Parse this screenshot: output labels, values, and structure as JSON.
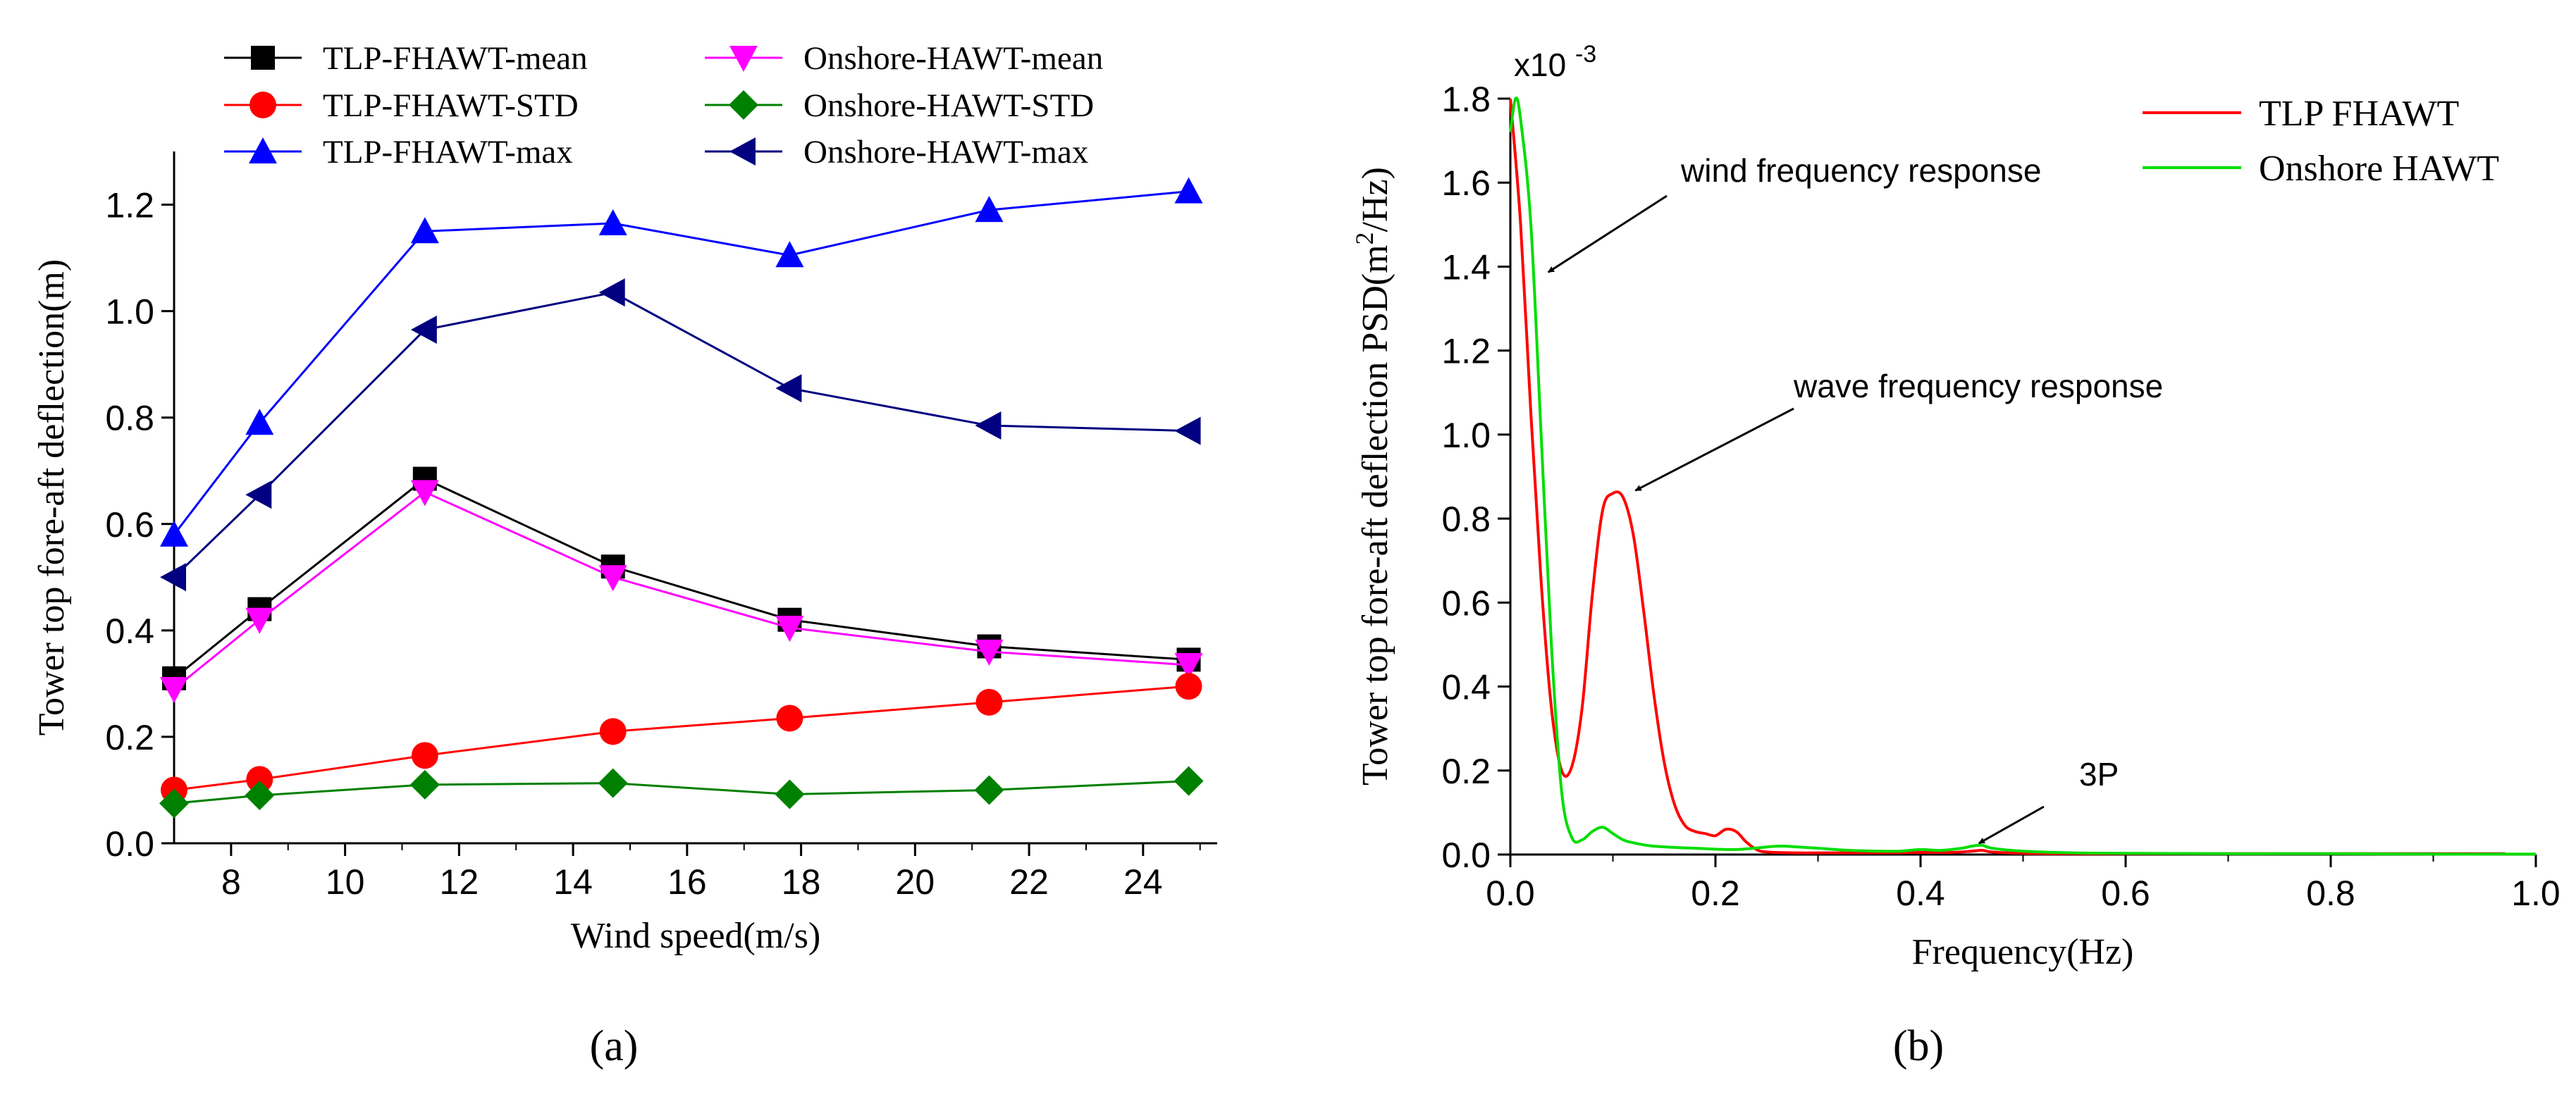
{
  "chart_data": [
    {
      "panel_label": "(a)",
      "type": "line",
      "xlabel": "Wind speed(m/s)",
      "ylabel": "Tower top fore-aft deflection(m)",
      "xlim": [
        7,
        25.3
      ],
      "ylim": [
        0,
        1.3
      ],
      "xticks": [
        8,
        10,
        12,
        14,
        16,
        18,
        20,
        22,
        24
      ],
      "yticks": [
        0.0,
        0.2,
        0.4,
        0.6,
        0.8,
        1.0,
        1.2
      ],
      "grid": false,
      "legend_position": "top-left, above plot, two columns",
      "x": [
        7.0,
        8.5,
        11.4,
        14.7,
        17.8,
        21.3,
        24.8
      ],
      "series": [
        {
          "name": "TLP-FHAWT-mean",
          "color": "#000000",
          "marker": "square",
          "values": [
            0.31,
            0.44,
            0.685,
            0.52,
            0.42,
            0.37,
            0.345
          ]
        },
        {
          "name": "Onshore-HAWT-mean",
          "color": "#ff00ff",
          "marker": "triangle-down",
          "values": [
            0.29,
            0.42,
            0.66,
            0.5,
            0.405,
            0.36,
            0.335
          ]
        },
        {
          "name": "TLP-FHAWT-STD",
          "color": "#ff0000",
          "marker": "circle",
          "values": [
            0.1,
            0.12,
            0.165,
            0.21,
            0.235,
            0.265,
            0.295
          ]
        },
        {
          "name": "Onshore-HAWT-STD",
          "color": "#008000",
          "marker": "diamond",
          "values": [
            0.075,
            0.09,
            0.11,
            0.113,
            0.092,
            0.1,
            0.117
          ]
        },
        {
          "name": "TLP-FHAWT-max",
          "color": "#0000ff",
          "marker": "triangle-up",
          "values": [
            0.58,
            0.79,
            1.15,
            1.165,
            1.105,
            1.19,
            1.225
          ]
        },
        {
          "name": "Onshore-HAWT-max",
          "color": "#000080",
          "marker": "triangle-left",
          "values": [
            0.5,
            0.655,
            0.965,
            1.035,
            0.855,
            0.785,
            0.775
          ]
        }
      ]
    },
    {
      "panel_label": "(b)",
      "type": "line",
      "xlabel": "Frequency(Hz)",
      "ylabel_prefix": "Tower top fore-aft deflection PSD(m",
      "ylabel_sup": "2",
      "ylabel_suffix": "/Hz)",
      "axis_multiplier_base": "x10",
      "axis_multiplier_exp": "-3",
      "xlim": [
        0,
        1.0
      ],
      "ylim": [
        0,
        1.8
      ],
      "xticks": [
        0.0,
        0.2,
        0.4,
        0.6,
        0.8,
        1.0
      ],
      "yticks": [
        0.0,
        0.2,
        0.4,
        0.6,
        0.8,
        1.0,
        1.2,
        1.4,
        1.6,
        1.8
      ],
      "grid": false,
      "legend_position": "top-right",
      "series": [
        {
          "name": "TLP FHAWT",
          "color": "#ff0000",
          "x": [
            0.0,
            0.01,
            0.02,
            0.03,
            0.04,
            0.05,
            0.06,
            0.07,
            0.08,
            0.09,
            0.1,
            0.11,
            0.12,
            0.13,
            0.14,
            0.15,
            0.16,
            0.17,
            0.18,
            0.19,
            0.2,
            0.21,
            0.22,
            0.23,
            0.24,
            0.25,
            0.28,
            0.32,
            0.36,
            0.4,
            0.43,
            0.45,
            0.46,
            0.47,
            0.5,
            0.55,
            0.6,
            0.7,
            0.8,
            0.9,
            0.97
          ],
          "values": [
            1.8,
            1.5,
            1.05,
            0.65,
            0.35,
            0.2,
            0.21,
            0.35,
            0.62,
            0.82,
            0.86,
            0.85,
            0.76,
            0.58,
            0.38,
            0.22,
            0.12,
            0.07,
            0.055,
            0.05,
            0.045,
            0.06,
            0.055,
            0.03,
            0.012,
            0.006,
            0.004,
            0.004,
            0.004,
            0.005,
            0.005,
            0.008,
            0.01,
            0.006,
            0.003,
            0.002,
            0.002,
            0.002,
            0.002,
            0.002,
            0.002
          ]
        },
        {
          "name": "Onshore HAWT",
          "color": "#00dd00",
          "x": [
            0.0,
            0.005,
            0.01,
            0.02,
            0.03,
            0.04,
            0.05,
            0.06,
            0.07,
            0.08,
            0.09,
            0.1,
            0.11,
            0.12,
            0.14,
            0.18,
            0.22,
            0.26,
            0.28,
            0.3,
            0.33,
            0.36,
            0.38,
            0.4,
            0.42,
            0.44,
            0.45,
            0.46,
            0.47,
            0.5,
            0.55,
            0.6,
            0.7,
            0.8,
            0.9,
            1.0
          ],
          "values": [
            1.72,
            1.8,
            1.75,
            1.5,
            1.0,
            0.5,
            0.15,
            0.04,
            0.035,
            0.055,
            0.065,
            0.05,
            0.035,
            0.028,
            0.02,
            0.015,
            0.012,
            0.02,
            0.018,
            0.015,
            0.01,
            0.008,
            0.008,
            0.012,
            0.01,
            0.015,
            0.02,
            0.022,
            0.015,
            0.008,
            0.004,
            0.003,
            0.002,
            0.002,
            0.001,
            0.001
          ]
        }
      ],
      "annotations": [
        {
          "text": "wind frequency response",
          "points_to": [
            0.03,
            1.38
          ]
        },
        {
          "text": "wave frequency response",
          "points_to": [
            0.115,
            0.86
          ]
        },
        {
          "text": "3P",
          "points_to": [
            0.45,
            0.02
          ]
        }
      ]
    }
  ]
}
